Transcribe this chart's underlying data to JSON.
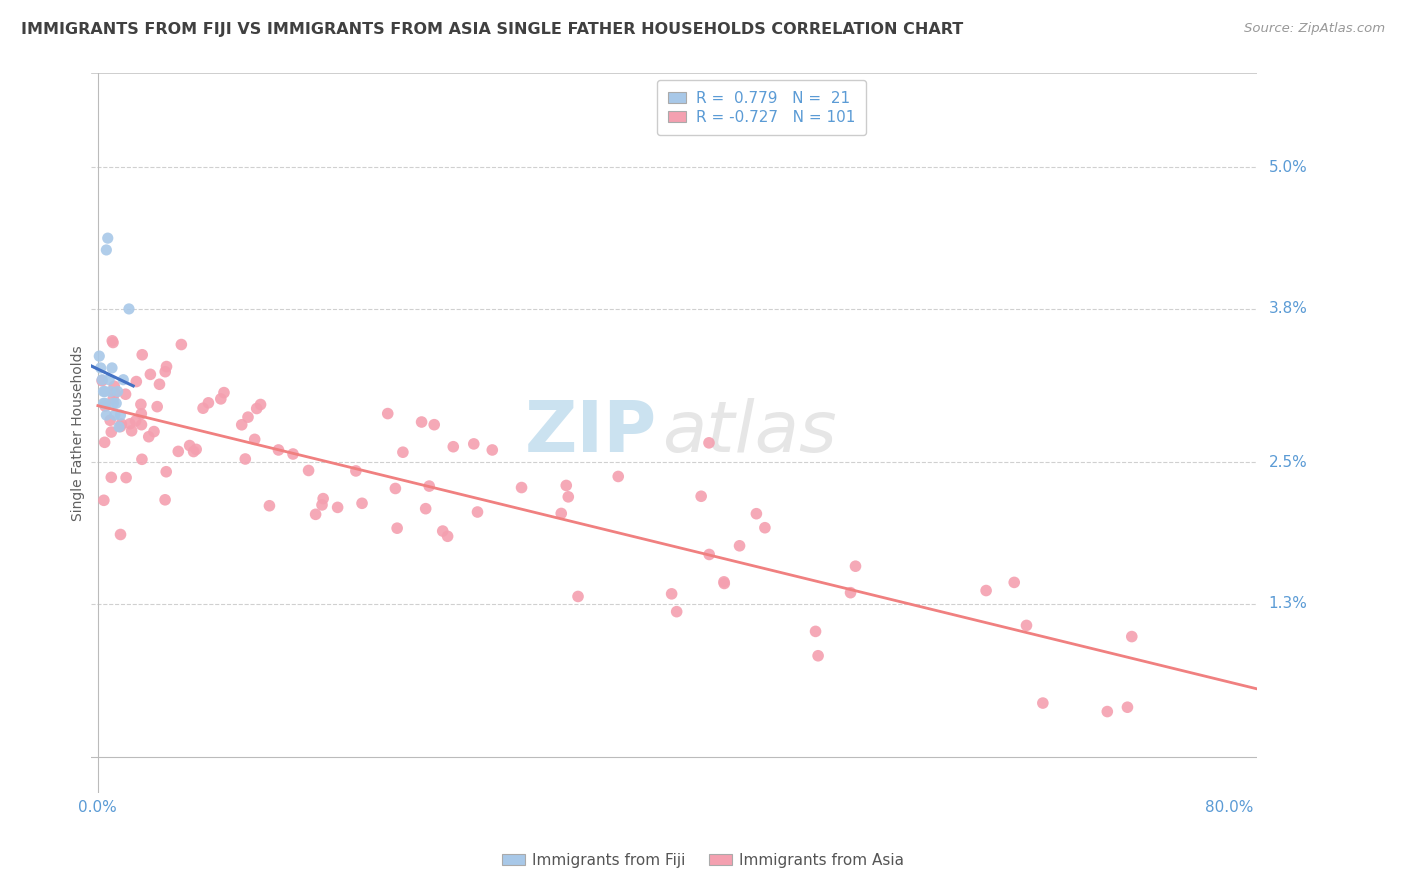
{
  "title": "IMMIGRANTS FROM FIJI VS IMMIGRANTS FROM ASIA SINGLE FATHER HOUSEHOLDS CORRELATION CHART",
  "source_text": "Source: ZipAtlas.com",
  "ylabel": "Single Father Households",
  "xlim": [
    -0.005,
    0.82
  ],
  "ylim": [
    -0.003,
    0.058
  ],
  "ytick_positions": [
    0.013,
    0.025,
    0.038,
    0.05
  ],
  "ytick_labels": [
    "1.3%",
    "2.5%",
    "3.8%",
    "5.0%"
  ],
  "xtick_vals": [
    0.0,
    0.8
  ],
  "xtick_labels": [
    "0.0%",
    "80.0%"
  ],
  "fiji_color": "#a8c8e8",
  "asia_color": "#f4a0b0",
  "fiji_line_color": "#4472c4",
  "asia_line_color": "#f08080",
  "background_color": "#ffffff",
  "grid_color": "#d0d0d0",
  "axis_color": "#5b9bd5",
  "title_color": "#404040",
  "ylabel_color": "#606060",
  "watermark_zip_color": "#6baed6",
  "watermark_atlas_color": "#c8c8c8"
}
